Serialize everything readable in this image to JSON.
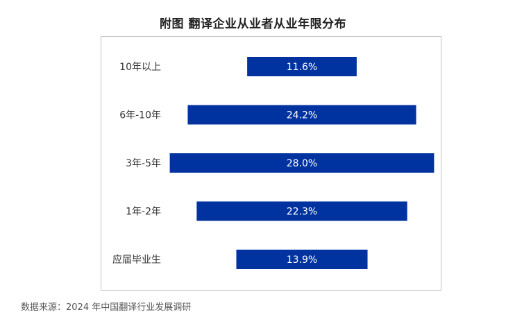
{
  "title": "附图   翻译企业从业者从业年限分布",
  "source": "数据来源：2024 年中国翻译行业发展调研",
  "colors": {
    "bar": "#0033a0",
    "label_text": "#ffffff",
    "category_text": "#333333"
  },
  "chart_data": {
    "type": "bar",
    "orientation": "horizontal",
    "layout": "diverging-centered",
    "title": "附图   翻译企业从业者从业年限分布",
    "categories": [
      "10年以上",
      "6年-10年",
      "3年-5年",
      "1年-2年",
      "应届毕业生"
    ],
    "values": [
      11.6,
      24.2,
      28.0,
      22.3,
      13.9
    ],
    "value_labels": [
      "11.6%",
      "24.2%",
      "28.0%",
      "22.3%",
      "13.9%"
    ],
    "unit": "%",
    "grid": false,
    "legend": "none"
  }
}
